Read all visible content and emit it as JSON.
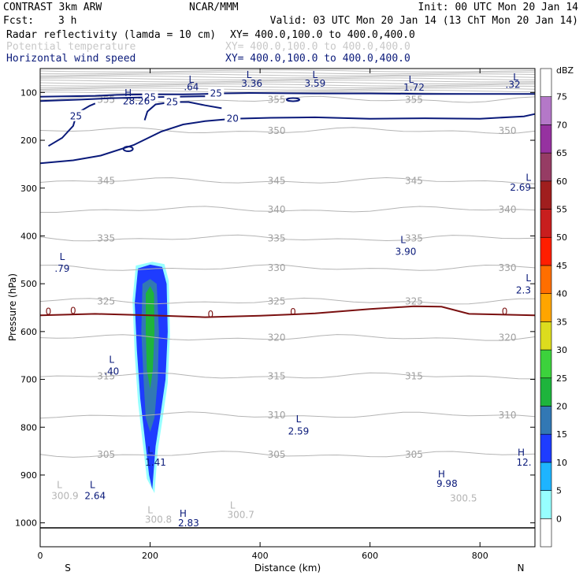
{
  "header": {
    "model": "CONTRAST  3km ARW",
    "org": "NCAR/MMM",
    "init": "Init: 00 UTC Mon 20 Jan 14",
    "fcst_label": "Fcst:",
    "fcst_value": "3 h",
    "valid": "Valid: 03 UTC Mon 20 Jan 14 (13 ChT Mon 20 Jan 14)",
    "fields": [
      {
        "name": "Radar reflectivity (lamda = 10 cm)",
        "xy": "XY= 400.0,100.0 to 400.0,400.0",
        "color": "#000000"
      },
      {
        "name": "Potential temperature",
        "xy": "XY= 400.0,100.0 to 400.0,400.0",
        "color": "#c8c8c8"
      },
      {
        "name": "Horizontal wind speed",
        "xy": "XY= 400.0,100.0 to 400.0,400.0",
        "color": "#0a1a7a"
      }
    ]
  },
  "chart_data": {
    "type": "cross-section contour",
    "xlabel": "Distance (km)",
    "ylabel": "Pressure (hPa)",
    "xlim": [
      0,
      900
    ],
    "ylim": [
      1050,
      50
    ],
    "x_ticks": [
      "0",
      "200",
      "400",
      "600",
      "800"
    ],
    "y_ticks": [
      "100",
      "200",
      "300",
      "400",
      "500",
      "600",
      "700",
      "800",
      "900",
      "1000"
    ],
    "x_end_labels": {
      "left": "S",
      "right": "N"
    },
    "colorbar": {
      "unit": "dBZ",
      "levels": [
        "0",
        "5",
        "10",
        "15",
        "20",
        "25",
        "30",
        "35",
        "40",
        "45",
        "50",
        "55",
        "60",
        "65",
        "70",
        "75"
      ],
      "colors": [
        "#ffffff",
        "#97ffff",
        "#1eb4ff",
        "#1e3cff",
        "#3278b4",
        "#1eb43c",
        "#3cd23c",
        "#dcdc1e",
        "#ffa500",
        "#ff6e00",
        "#ff1e00",
        "#c81e1e",
        "#a01e1e",
        "#963c64",
        "#9632a0",
        "#b478c8",
        "#ffffff"
      ]
    },
    "theta_levels": [
      {
        "value": 305,
        "p": 857
      },
      {
        "value": 310,
        "p": 775
      },
      {
        "value": 315,
        "p": 693
      },
      {
        "value": 320,
        "p": 613
      },
      {
        "value": 325,
        "p": 537
      },
      {
        "value": 330,
        "p": 467
      },
      {
        "value": 335,
        "p": 405
      },
      {
        "value": 340,
        "p": 345
      },
      {
        "value": 345,
        "p": 285
      },
      {
        "value": 350,
        "p": 180
      },
      {
        "value": 355,
        "p": 115
      }
    ],
    "zero_contour": [
      [
        0,
        566
      ],
      [
        100,
        563
      ],
      [
        200,
        566
      ],
      [
        300,
        570
      ],
      [
        400,
        567
      ],
      [
        500,
        562
      ],
      [
        600,
        553
      ],
      [
        680,
        547
      ],
      [
        730,
        548
      ],
      [
        780,
        563
      ],
      [
        900,
        566
      ]
    ],
    "wind_contours": [
      {
        "label": "25",
        "points": [
          [
            0,
            109
          ],
          [
            100,
            107
          ],
          [
            140,
            105
          ],
          [
            200,
            104
          ],
          [
            260,
            104
          ],
          [
            300,
            103
          ],
          [
            320,
            102
          ],
          [
            380,
            101
          ],
          [
            500,
            102
          ],
          [
            600,
            102
          ],
          [
            700,
            103
          ],
          [
            800,
            103
          ],
          [
            900,
            103
          ]
        ]
      },
      {
        "label": "25",
        "points": [
          [
            0,
            118
          ],
          [
            70,
            115
          ],
          [
            130,
            112
          ],
          [
            200,
            110
          ],
          [
            250,
            109
          ],
          [
            300,
            108
          ]
        ]
      },
      {
        "label": "25",
        "points": [
          [
            15,
            212
          ],
          [
            40,
            195
          ],
          [
            60,
            170
          ],
          [
            65,
            150
          ],
          [
            75,
            138
          ],
          [
            90,
            128
          ],
          [
            100,
            123
          ]
        ]
      },
      {
        "label": "25",
        "points": [
          [
            190,
            158
          ],
          [
            195,
            140
          ],
          [
            210,
            125
          ],
          [
            240,
            120
          ],
          [
            270,
            120
          ],
          [
            300,
            127
          ],
          [
            330,
            133
          ]
        ]
      },
      {
        "label": "20",
        "points": [
          [
            0,
            248
          ],
          [
            60,
            242
          ],
          [
            110,
            232
          ],
          [
            170,
            210
          ],
          [
            220,
            182
          ],
          [
            260,
            167
          ],
          [
            300,
            160
          ],
          [
            350,
            155
          ],
          [
            420,
            153
          ],
          [
            500,
            152
          ],
          [
            600,
            155
          ],
          [
            700,
            154
          ],
          [
            800,
            155
          ],
          [
            880,
            150
          ],
          [
            900,
            145
          ]
        ]
      }
    ],
    "refl_cells": [
      {
        "dbz": "10",
        "points": [
          [
            178,
            468
          ],
          [
            200,
            460
          ],
          [
            222,
            465
          ],
          [
            230,
            500
          ],
          [
            232,
            600
          ],
          [
            228,
            700
          ],
          [
            218,
            780
          ],
          [
            210,
            840
          ],
          [
            204,
            930
          ],
          [
            198,
            900
          ],
          [
            190,
            820
          ],
          [
            182,
            740
          ],
          [
            176,
            640
          ],
          [
            172,
            540
          ]
        ]
      },
      {
        "dbz": "15",
        "points": [
          [
            186,
            500
          ],
          [
            200,
            490
          ],
          [
            212,
            500
          ],
          [
            216,
            600
          ],
          [
            214,
            700
          ],
          [
            208,
            780
          ],
          [
            200,
            810
          ],
          [
            192,
            780
          ],
          [
            188,
            700
          ],
          [
            184,
            600
          ]
        ]
      },
      {
        "dbz": "20",
        "points": [
          [
            192,
            520
          ],
          [
            200,
            505
          ],
          [
            207,
            520
          ],
          [
            208,
            600
          ],
          [
            205,
            680
          ],
          [
            200,
            720
          ],
          [
            194,
            680
          ],
          [
            192,
            600
          ]
        ]
      }
    ],
    "annotations": [
      {
        "text": "H",
        "x": 160,
        "p": 108,
        "group": "wind"
      },
      {
        "text": "28.26",
        "x": 175,
        "p": 125,
        "group": "wind"
      },
      {
        "text": "L",
        "x": 275,
        "p": 80,
        "group": "wind"
      },
      {
        "text": ".64",
        "x": 275,
        "p": 95,
        "group": "wind"
      },
      {
        "text": "L",
        "x": 380,
        "p": 70,
        "group": "wind"
      },
      {
        "text": "3.36",
        "x": 385,
        "p": 88,
        "group": "wind"
      },
      {
        "text": "L",
        "x": 500,
        "p": 70,
        "group": "wind"
      },
      {
        "text": "3.59",
        "x": 500,
        "p": 88,
        "group": "wind"
      },
      {
        "text": "L",
        "x": 675,
        "p": 80,
        "group": "wind"
      },
      {
        "text": "1.72",
        "x": 680,
        "p": 96,
        "group": "wind"
      },
      {
        "text": "L",
        "x": 865,
        "p": 75,
        "group": "wind"
      },
      {
        "text": ".32",
        "x": 860,
        "p": 90,
        "group": "wind"
      },
      {
        "text": "L",
        "x": 925,
        "p": 285,
        "group": "wind"
      },
      {
        "text": "2.69",
        "x": 925,
        "p": 305,
        "group": "wind"
      },
      {
        "text": "L",
        "x": 660,
        "p": 415,
        "group": "wind"
      },
      {
        "text": "3.90",
        "x": 665,
        "p": 440,
        "group": "wind"
      },
      {
        "text": "L",
        "x": 40,
        "p": 450,
        "group": "wind"
      },
      {
        "text": ".79",
        "x": 40,
        "p": 475,
        "group": "wind"
      },
      {
        "text": "L",
        "x": 945,
        "p": 495,
        "group": "wind"
      },
      {
        "text": "2.3",
        "x": 945,
        "p": 520,
        "group": "wind"
      },
      {
        "text": "L",
        "x": 130,
        "p": 665,
        "group": "wind"
      },
      {
        "text": ".40",
        "x": 130,
        "p": 690,
        "group": "wind"
      },
      {
        "text": "L",
        "x": 470,
        "p": 790,
        "group": "wind"
      },
      {
        "text": "2.59",
        "x": 470,
        "p": 815,
        "group": "wind"
      },
      {
        "text": "L",
        "x": 200,
        "p": 855,
        "group": "wind"
      },
      {
        "text": "1.41",
        "x": 210,
        "p": 880,
        "group": "wind"
      },
      {
        "text": "L",
        "x": 95,
        "p": 927,
        "group": "wind"
      },
      {
        "text": "2.64",
        "x": 100,
        "p": 950,
        "group": "wind"
      },
      {
        "text": "H",
        "x": 730,
        "p": 905,
        "group": "wind"
      },
      {
        "text": "9.98",
        "x": 740,
        "p": 925,
        "group": "wind"
      },
      {
        "text": "H",
        "x": 875,
        "p": 860,
        "group": "wind"
      },
      {
        "text": "12.",
        "x": 880,
        "p": 880,
        "group": "wind"
      },
      {
        "text": "H",
        "x": 260,
        "p": 987,
        "group": "wind"
      },
      {
        "text": "2.83",
        "x": 270,
        "p": 1007,
        "group": "wind"
      },
      {
        "text": "L",
        "x": 35,
        "p": 927,
        "group": "theta"
      },
      {
        "text": "300.9",
        "x": 45,
        "p": 950,
        "group": "theta"
      },
      {
        "text": "L",
        "x": 200,
        "p": 980,
        "group": "theta"
      },
      {
        "text": "300.8",
        "x": 215,
        "p": 1000,
        "group": "theta"
      },
      {
        "text": "L",
        "x": 350,
        "p": 970,
        "group": "theta"
      },
      {
        "text": "300.7",
        "x": 365,
        "p": 990,
        "group": "theta"
      },
      {
        "text": "300.5",
        "x": 770,
        "p": 955,
        "group": "theta"
      },
      {
        "text": "0",
        "x": 15,
        "p": 565,
        "group": "zero"
      },
      {
        "text": "0",
        "x": 60,
        "p": 563,
        "group": "zero"
      },
      {
        "text": "0",
        "x": 310,
        "p": 571,
        "group": "zero"
      },
      {
        "text": "0",
        "x": 460,
        "p": 566,
        "group": "zero"
      },
      {
        "text": "0",
        "x": 845,
        "p": 565,
        "group": "zero"
      }
    ]
  }
}
